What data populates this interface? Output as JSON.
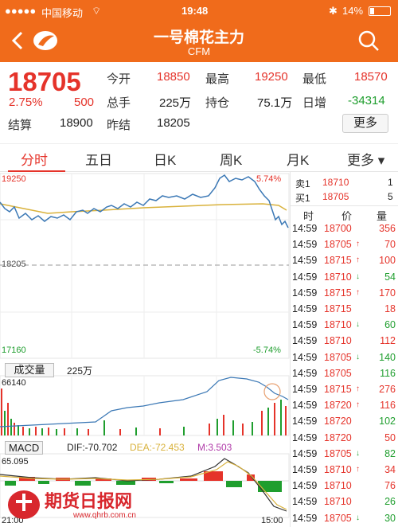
{
  "status": {
    "carrier": "中国移动",
    "time": "19:48",
    "battery": "14%"
  },
  "header": {
    "title": "一号棉花主力",
    "subtitle": "CFM"
  },
  "quote": {
    "price": "18705",
    "pct": "2.75%",
    "change": "500",
    "open_label": "今开",
    "open": "18850",
    "high_label": "最高",
    "high": "19250",
    "low_label": "最低",
    "low": "18570",
    "vol_label": "总手",
    "vol": "225万",
    "oi_label": "持仓",
    "oi": "75.1万",
    "dayinc_label": "日增",
    "dayinc": "-34314",
    "settle_label": "结算",
    "settle": "18900",
    "prevsettle_label": "昨结",
    "prevsettle": "18205",
    "more": "更多"
  },
  "tabs": [
    "分时",
    "五日",
    "日K",
    "周K",
    "月K",
    "更多"
  ],
  "chart": {
    "top_price": "19250",
    "top_pct": "5.74%",
    "mid_price": "18205",
    "bottom_price": "17160",
    "bottom_pct": "-5.74%",
    "volume_label": "成交量",
    "volume": "225万",
    "vol_max": "66140",
    "macd_label": "MACD",
    "dif": "DIF:-70.702",
    "dea": "DEA:-72.453",
    "m": "M:3.503",
    "macd_top": "65.095",
    "time_start": "21:00",
    "time_end": "15:00"
  },
  "orderbook": {
    "sell_label": "卖1",
    "sell_price": "18710",
    "sell_qty": "1",
    "buy_label": "买1",
    "buy_price": "18705",
    "buy_qty": "5"
  },
  "trades_header": {
    "time": "时",
    "price": "价",
    "qty": "量"
  },
  "trades": [
    {
      "t": "14:59",
      "p": "18700",
      "q": "356",
      "d": "",
      "c": "red"
    },
    {
      "t": "14:59",
      "p": "18705",
      "q": "70",
      "d": "↑",
      "c": "red"
    },
    {
      "t": "14:59",
      "p": "18715",
      "q": "100",
      "d": "↑",
      "c": "red"
    },
    {
      "t": "14:59",
      "p": "18710",
      "q": "54",
      "d": "↓",
      "c": "green"
    },
    {
      "t": "14:59",
      "p": "18715",
      "q": "170",
      "d": "↑",
      "c": "red"
    },
    {
      "t": "14:59",
      "p": "18715",
      "q": "18",
      "d": "",
      "c": "red"
    },
    {
      "t": "14:59",
      "p": "18710",
      "q": "60",
      "d": "↓",
      "c": "green"
    },
    {
      "t": "14:59",
      "p": "18710",
      "q": "112",
      "d": "",
      "c": "red"
    },
    {
      "t": "14:59",
      "p": "18705",
      "q": "140",
      "d": "↓",
      "c": "green"
    },
    {
      "t": "14:59",
      "p": "18705",
      "q": "116",
      "d": "",
      "c": "green"
    },
    {
      "t": "14:59",
      "p": "18715",
      "q": "276",
      "d": "↑",
      "c": "red"
    },
    {
      "t": "14:59",
      "p": "18720",
      "q": "116",
      "d": "↑",
      "c": "red"
    },
    {
      "t": "14:59",
      "p": "18720",
      "q": "102",
      "d": "",
      "c": "green"
    },
    {
      "t": "14:59",
      "p": "18720",
      "q": "50",
      "d": "",
      "c": "red"
    },
    {
      "t": "14:59",
      "p": "18705",
      "q": "82",
      "d": "↓",
      "c": "green"
    },
    {
      "t": "14:59",
      "p": "18710",
      "q": "34",
      "d": "↑",
      "c": "red"
    },
    {
      "t": "14:59",
      "p": "18710",
      "q": "76",
      "d": "",
      "c": "red"
    },
    {
      "t": "14:59",
      "p": "18710",
      "q": "26",
      "d": "",
      "c": "green"
    },
    {
      "t": "14:59",
      "p": "18705",
      "q": "30",
      "d": "↓",
      "c": "green"
    }
  ],
  "watermark": {
    "text": "期货日报网",
    "url": "www.qhrb.com.cn"
  },
  "colors": {
    "accent": "#f06b1b",
    "up": "#e5332a",
    "down": "#1f9e2e",
    "avg": "#d9b23c",
    "line": "#3b78b5"
  }
}
